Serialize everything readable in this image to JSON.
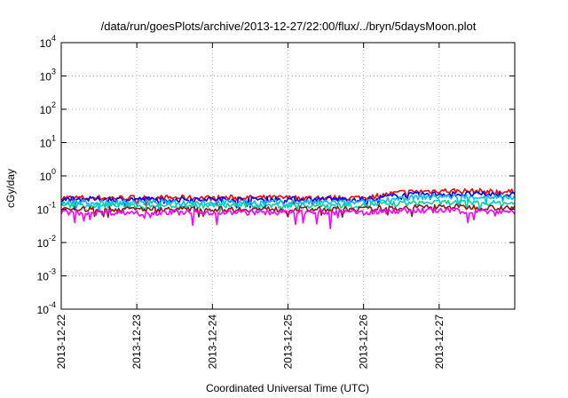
{
  "chart_data": {
    "type": "line",
    "title": "/data/run/goesPlots/archive/2013-12-27/22:00/flux/../bryn/5daysMoon.plot",
    "xlabel": "Coordinated Universal Time (UTC)",
    "ylabel": "cGy/day",
    "yscale": "log",
    "ylim": [
      0.0001,
      10000
    ],
    "y_ticks": [
      {
        "base": "10",
        "exp": "4"
      },
      {
        "base": "10",
        "exp": "3"
      },
      {
        "base": "10",
        "exp": "2"
      },
      {
        "base": "10",
        "exp": "1"
      },
      {
        "base": "10",
        "exp": "0"
      },
      {
        "base": "10",
        "exp": "-1"
      },
      {
        "base": "10",
        "exp": "-2"
      },
      {
        "base": "10",
        "exp": "-3"
      },
      {
        "base": "10",
        "exp": "-4"
      }
    ],
    "x_ticks": [
      "2013-12-22",
      "2013-12-23",
      "2013-12-24",
      "2013-12-25",
      "2013-12-26",
      "2013-12-27"
    ],
    "xlim": [
      "2013-12-22",
      "2013-12-28"
    ],
    "grid": true,
    "series": [
      {
        "color": "#ff0000",
        "x": [
          "2013-12-22",
          "2013-12-23",
          "2013-12-24",
          "2013-12-25",
          "2013-12-26",
          "2013-12-26 12:00",
          "2013-12-27",
          "2013-12-28"
        ],
        "values": [
          0.22,
          0.22,
          0.22,
          0.22,
          0.22,
          0.32,
          0.36,
          0.33
        ]
      },
      {
        "color": "#0000ff",
        "x": [
          "2013-12-22",
          "2013-12-23",
          "2013-12-24",
          "2013-12-25",
          "2013-12-26",
          "2013-12-26 12:00",
          "2013-12-27",
          "2013-12-28"
        ],
        "values": [
          0.2,
          0.2,
          0.2,
          0.2,
          0.2,
          0.26,
          0.29,
          0.27
        ]
      },
      {
        "color": "#00bfff",
        "x": [
          "2013-12-22",
          "2013-12-23",
          "2013-12-24",
          "2013-12-25",
          "2013-12-26",
          "2013-12-26 12:00",
          "2013-12-27",
          "2013-12-28"
        ],
        "values": [
          0.16,
          0.16,
          0.16,
          0.16,
          0.16,
          0.22,
          0.24,
          0.23
        ]
      },
      {
        "color": "#00d4a0",
        "x": [
          "2013-12-22",
          "2013-12-23",
          "2013-12-24",
          "2013-12-25",
          "2013-12-26",
          "2013-12-26 12:00",
          "2013-12-27",
          "2013-12-28"
        ],
        "values": [
          0.13,
          0.13,
          0.13,
          0.13,
          0.13,
          0.15,
          0.16,
          0.15
        ]
      },
      {
        "color": "#8b1a1a",
        "x": [
          "2013-12-22",
          "2013-12-23",
          "2013-12-24",
          "2013-12-25",
          "2013-12-26",
          "2013-12-26 12:00",
          "2013-12-27",
          "2013-12-28"
        ],
        "values": [
          0.1,
          0.1,
          0.1,
          0.1,
          0.1,
          0.11,
          0.12,
          0.11
        ]
      },
      {
        "color": "#ff00ff",
        "x": [
          "2013-12-22",
          "2013-12-23",
          "2013-12-24",
          "2013-12-25",
          "2013-12-26",
          "2013-12-26 12:00",
          "2013-12-27",
          "2013-12-28"
        ],
        "values": [
          0.08,
          0.08,
          0.08,
          0.08,
          0.08,
          0.09,
          0.09,
          0.085
        ]
      }
    ]
  }
}
